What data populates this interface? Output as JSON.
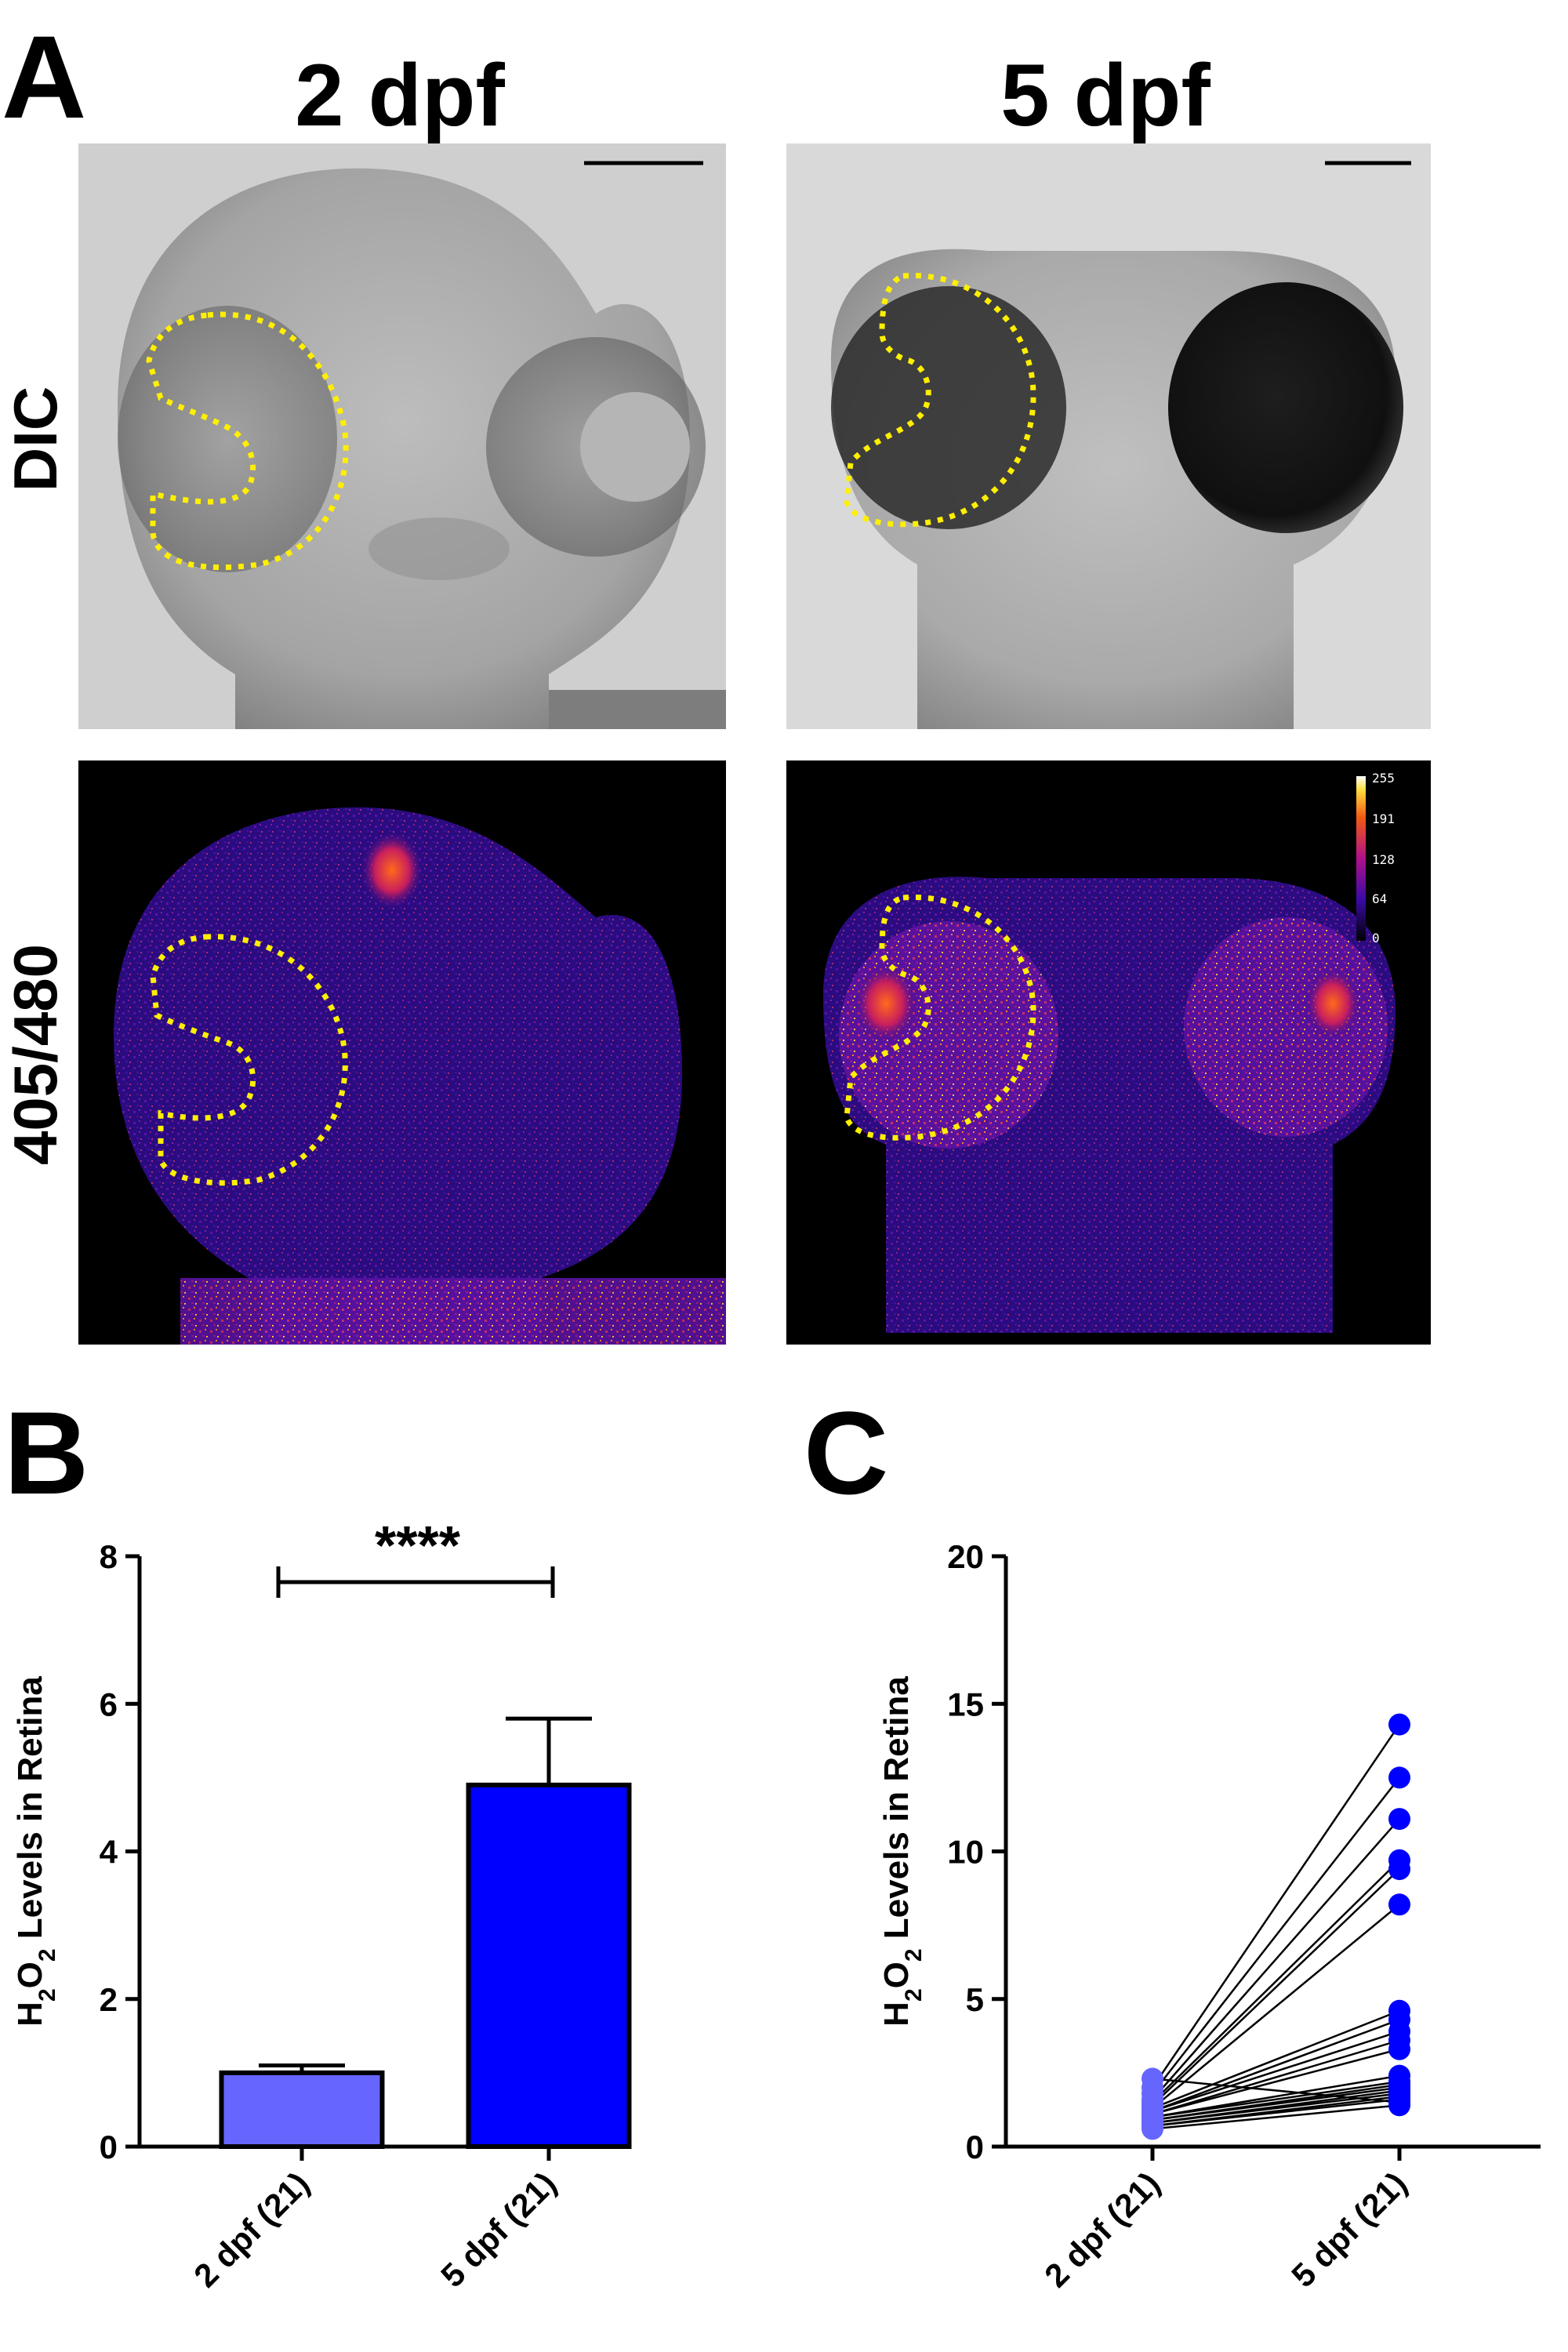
{
  "panel_a": {
    "letter": "A",
    "columns": [
      "2 dpf",
      "5 dpf"
    ],
    "rows": [
      "DIC",
      "405/480"
    ],
    "colorbar_ticks": [
      "255",
      "191",
      "128",
      "64",
      "0"
    ]
  },
  "chart_data": [
    {
      "type": "bar",
      "panel": "B",
      "categories": [
        "2 dpf (21)",
        "5 dpf (21)"
      ],
      "values": [
        1.0,
        4.9
      ],
      "error_upper": [
        0.1,
        0.9
      ],
      "colors": [
        "#6666ff",
        "#0000ff"
      ],
      "ylabel": "H2O2 Levels in Retina",
      "ylim": [
        0,
        8
      ],
      "yticks": [
        0,
        2,
        4,
        6,
        8
      ],
      "significance": "****",
      "grid": false
    },
    {
      "type": "scatter",
      "panel": "C",
      "categories": [
        "2 dpf (21)",
        "5 dpf (21)"
      ],
      "paired": true,
      "series": [
        {
          "values": [
            0.6,
            0.7,
            0.7,
            0.8,
            0.8,
            0.9,
            0.9,
            1.0,
            1.0,
            1.1,
            1.1,
            1.2,
            1.2,
            1.3,
            1.3,
            1.4,
            1.5,
            1.6,
            1.8,
            2.0,
            2.3
          ],
          "color": "#6666ff"
        },
        {
          "values": [
            1.4,
            1.6,
            1.7,
            1.8,
            1.9,
            2.0,
            2.1,
            2.2,
            2.4,
            3.3,
            3.6,
            3.9,
            4.3,
            4.6,
            8.2,
            9.4,
            9.7,
            11.1,
            12.5,
            14.3,
            1.5
          ],
          "color": "#0000ff"
        }
      ],
      "ylabel": "H2O2 Levels in Retina",
      "ylim": [
        0,
        20
      ],
      "yticks": [
        0,
        5,
        10,
        15,
        20
      ],
      "grid": false
    }
  ]
}
